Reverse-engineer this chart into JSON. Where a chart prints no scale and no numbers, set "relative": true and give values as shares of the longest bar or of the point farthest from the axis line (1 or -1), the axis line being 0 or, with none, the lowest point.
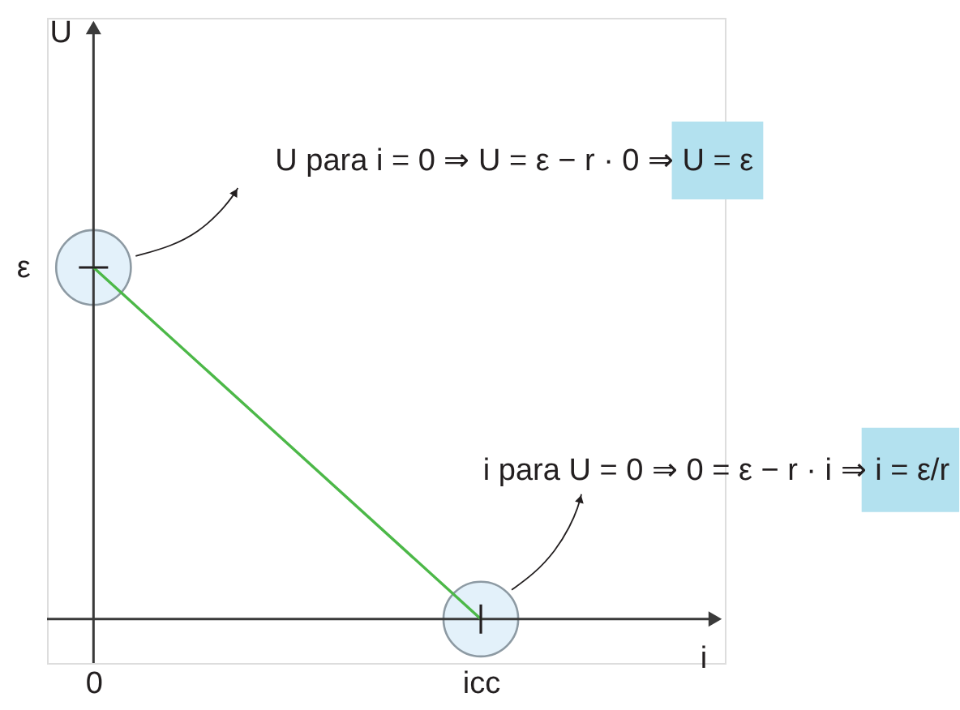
{
  "chart_data": {
    "type": "line",
    "relative": true,
    "xlabel": "i",
    "categories": [
      "0",
      "icc"
    ],
    "series": [
      {
        "type": "scatter",
        "marker": "circle",
        "color": "#e3f1fa",
        "values": [
          1,
          0
        ]
      },
      {
        "color": "#4cb848",
        "values": [
          1,
          0
        ]
      }
    ],
    "annotations": [
      "U",
      "U para i = 0 ⇒ U = ε − r · 0 ⇒ U = ε",
      "ε",
      "i para U = 0 ⇒ 0 = ε − r · i ⇒ i = ε/r"
    ]
  }
}
